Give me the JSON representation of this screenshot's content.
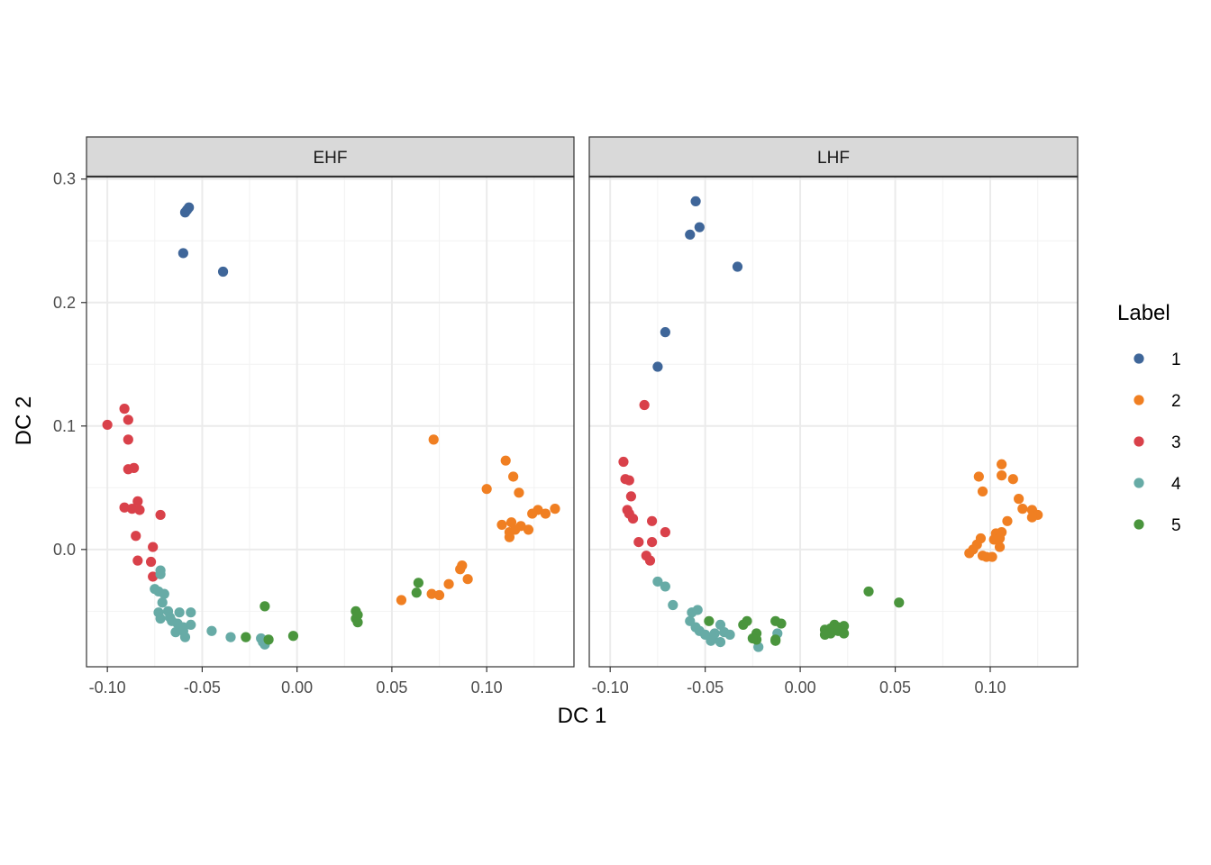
{
  "chart_data": {
    "type": "scatter",
    "xlabel": "DC 1",
    "ylabel": "DC 2",
    "xlim": [
      -0.111,
      0.146
    ],
    "ylim": [
      -0.095,
      0.302
    ],
    "x_ticks": [
      -0.1,
      -0.05,
      0.0,
      0.05,
      0.1
    ],
    "x_tick_labels": [
      "-0.10",
      "-0.05",
      "0.00",
      "0.05",
      "0.10"
    ],
    "y_ticks": [
      0.0,
      0.1,
      0.2,
      0.3
    ],
    "y_tick_labels": [
      "0.0",
      "0.1",
      "0.2",
      "0.3"
    ],
    "grid": true,
    "legend": {
      "title": "Label",
      "placement": "right",
      "entries": [
        {
          "label": "1",
          "color": "#3f6699"
        },
        {
          "label": "2",
          "color": "#f07f22"
        },
        {
          "label": "3",
          "color": "#d9414a"
        },
        {
          "label": "4",
          "color": "#67aba6"
        },
        {
          "label": "5",
          "color": "#4a953d"
        }
      ]
    },
    "panels": [
      {
        "strip": "EHF",
        "points": {
          "1": [
            [
              -0.057,
              0.277
            ],
            [
              -0.058,
              0.275
            ],
            [
              -0.059,
              0.273
            ],
            [
              -0.06,
              0.24
            ],
            [
              -0.039,
              0.225
            ]
          ],
          "2": [
            [
              0.072,
              0.089
            ],
            [
              0.11,
              0.072
            ],
            [
              0.114,
              0.059
            ],
            [
              0.1,
              0.049
            ],
            [
              0.117,
              0.046
            ],
            [
              0.136,
              0.033
            ],
            [
              0.127,
              0.032
            ],
            [
              0.131,
              0.029
            ],
            [
              0.124,
              0.029
            ],
            [
              0.113,
              0.022
            ],
            [
              0.108,
              0.02
            ],
            [
              0.118,
              0.019
            ],
            [
              0.122,
              0.016
            ],
            [
              0.115,
              0.016
            ],
            [
              0.112,
              0.014
            ],
            [
              0.112,
              0.01
            ],
            [
              0.087,
              -0.013
            ],
            [
              0.086,
              -0.016
            ],
            [
              0.09,
              -0.024
            ],
            [
              0.08,
              -0.028
            ],
            [
              0.071,
              -0.036
            ],
            [
              0.075,
              -0.037
            ],
            [
              0.055,
              -0.041
            ]
          ],
          "3": [
            [
              -0.091,
              0.114
            ],
            [
              -0.089,
              0.105
            ],
            [
              -0.1,
              0.101
            ],
            [
              -0.089,
              0.089
            ],
            [
              -0.086,
              0.066
            ],
            [
              -0.089,
              0.065
            ],
            [
              -0.084,
              0.039
            ],
            [
              -0.091,
              0.034
            ],
            [
              -0.087,
              0.033
            ],
            [
              -0.083,
              0.032
            ],
            [
              -0.072,
              0.028
            ],
            [
              -0.085,
              0.011
            ],
            [
              -0.076,
              0.002
            ],
            [
              -0.084,
              -0.009
            ],
            [
              -0.077,
              -0.01
            ],
            [
              -0.076,
              -0.022
            ]
          ],
          "4": [
            [
              -0.072,
              -0.017
            ],
            [
              -0.072,
              -0.02
            ],
            [
              -0.075,
              -0.032
            ],
            [
              -0.07,
              -0.036
            ],
            [
              -0.073,
              -0.034
            ],
            [
              -0.071,
              -0.043
            ],
            [
              -0.073,
              -0.051
            ],
            [
              -0.068,
              -0.05
            ],
            [
              -0.062,
              -0.051
            ],
            [
              -0.056,
              -0.051
            ],
            [
              -0.072,
              -0.056
            ],
            [
              -0.067,
              -0.055
            ],
            [
              -0.066,
              -0.058
            ],
            [
              -0.063,
              -0.06
            ],
            [
              -0.06,
              -0.063
            ],
            [
              -0.056,
              -0.061
            ],
            [
              -0.064,
              -0.067
            ],
            [
              -0.06,
              -0.066
            ],
            [
              -0.059,
              -0.071
            ],
            [
              -0.045,
              -0.066
            ],
            [
              -0.035,
              -0.071
            ],
            [
              -0.019,
              -0.072
            ],
            [
              -0.018,
              -0.075
            ],
            [
              -0.017,
              -0.077
            ]
          ],
          "5": [
            [
              -0.017,
              -0.046
            ],
            [
              0.031,
              -0.05
            ],
            [
              0.032,
              -0.053
            ],
            [
              0.031,
              -0.056
            ],
            [
              0.032,
              -0.059
            ],
            [
              0.064,
              -0.027
            ],
            [
              0.063,
              -0.035
            ],
            [
              -0.027,
              -0.071
            ],
            [
              -0.015,
              -0.073
            ],
            [
              -0.002,
              -0.07
            ]
          ]
        }
      },
      {
        "strip": "LHF",
        "points": {
          "1": [
            [
              -0.055,
              0.282
            ],
            [
              -0.053,
              0.261
            ],
            [
              -0.058,
              0.255
            ],
            [
              -0.033,
              0.229
            ],
            [
              -0.071,
              0.176
            ],
            [
              -0.075,
              0.148
            ]
          ],
          "2": [
            [
              0.094,
              0.059
            ],
            [
              0.106,
              0.069
            ],
            [
              0.106,
              0.06
            ],
            [
              0.112,
              0.057
            ],
            [
              0.096,
              0.047
            ],
            [
              0.115,
              0.041
            ],
            [
              0.117,
              0.033
            ],
            [
              0.122,
              0.032
            ],
            [
              0.125,
              0.028
            ],
            [
              0.122,
              0.026
            ],
            [
              0.109,
              0.023
            ],
            [
              0.106,
              0.014
            ],
            [
              0.103,
              0.013
            ],
            [
              0.105,
              0.009
            ],
            [
              0.095,
              0.009
            ],
            [
              0.102,
              0.008
            ],
            [
              0.105,
              0.002
            ],
            [
              0.093,
              0.004
            ],
            [
              0.091,
              0.0
            ],
            [
              0.089,
              -0.003
            ],
            [
              0.096,
              -0.005
            ],
            [
              0.101,
              -0.006
            ],
            [
              0.098,
              -0.006
            ]
          ],
          "3": [
            [
              -0.082,
              0.117
            ],
            [
              -0.093,
              0.071
            ],
            [
              -0.092,
              0.057
            ],
            [
              -0.09,
              0.056
            ],
            [
              -0.089,
              0.043
            ],
            [
              -0.091,
              0.032
            ],
            [
              -0.09,
              0.029
            ],
            [
              -0.078,
              0.023
            ],
            [
              -0.088,
              0.025
            ],
            [
              -0.071,
              0.014
            ],
            [
              -0.085,
              0.006
            ],
            [
              -0.078,
              0.006
            ],
            [
              -0.081,
              -0.005
            ],
            [
              -0.079,
              -0.009
            ]
          ],
          "4": [
            [
              -0.075,
              -0.026
            ],
            [
              -0.071,
              -0.03
            ],
            [
              -0.067,
              -0.045
            ],
            [
              -0.057,
              -0.051
            ],
            [
              -0.054,
              -0.049
            ],
            [
              -0.058,
              -0.058
            ],
            [
              -0.055,
              -0.063
            ],
            [
              -0.053,
              -0.066
            ],
            [
              -0.05,
              -0.069
            ],
            [
              -0.046,
              -0.071
            ],
            [
              -0.042,
              -0.061
            ],
            [
              -0.04,
              -0.067
            ],
            [
              -0.045,
              -0.068
            ],
            [
              -0.042,
              -0.075
            ],
            [
              -0.047,
              -0.074
            ],
            [
              -0.037,
              -0.069
            ],
            [
              -0.022,
              -0.079
            ],
            [
              -0.012,
              -0.068
            ]
          ],
          "5": [
            [
              -0.048,
              -0.058
            ],
            [
              -0.028,
              -0.058
            ],
            [
              -0.03,
              -0.061
            ],
            [
              -0.013,
              -0.058
            ],
            [
              -0.01,
              -0.06
            ],
            [
              -0.023,
              -0.068
            ],
            [
              -0.023,
              -0.073
            ],
            [
              -0.025,
              -0.072
            ],
            [
              -0.013,
              -0.073
            ],
            [
              -0.013,
              -0.074
            ],
            [
              0.036,
              -0.034
            ],
            [
              0.052,
              -0.043
            ],
            [
              0.013,
              -0.065
            ],
            [
              0.016,
              -0.064
            ],
            [
              0.018,
              -0.061
            ],
            [
              0.02,
              -0.063
            ],
            [
              0.023,
              -0.062
            ],
            [
              0.016,
              -0.068
            ],
            [
              0.02,
              -0.066
            ],
            [
              0.023,
              -0.068
            ],
            [
              0.013,
              -0.069
            ]
          ]
        }
      }
    ]
  }
}
